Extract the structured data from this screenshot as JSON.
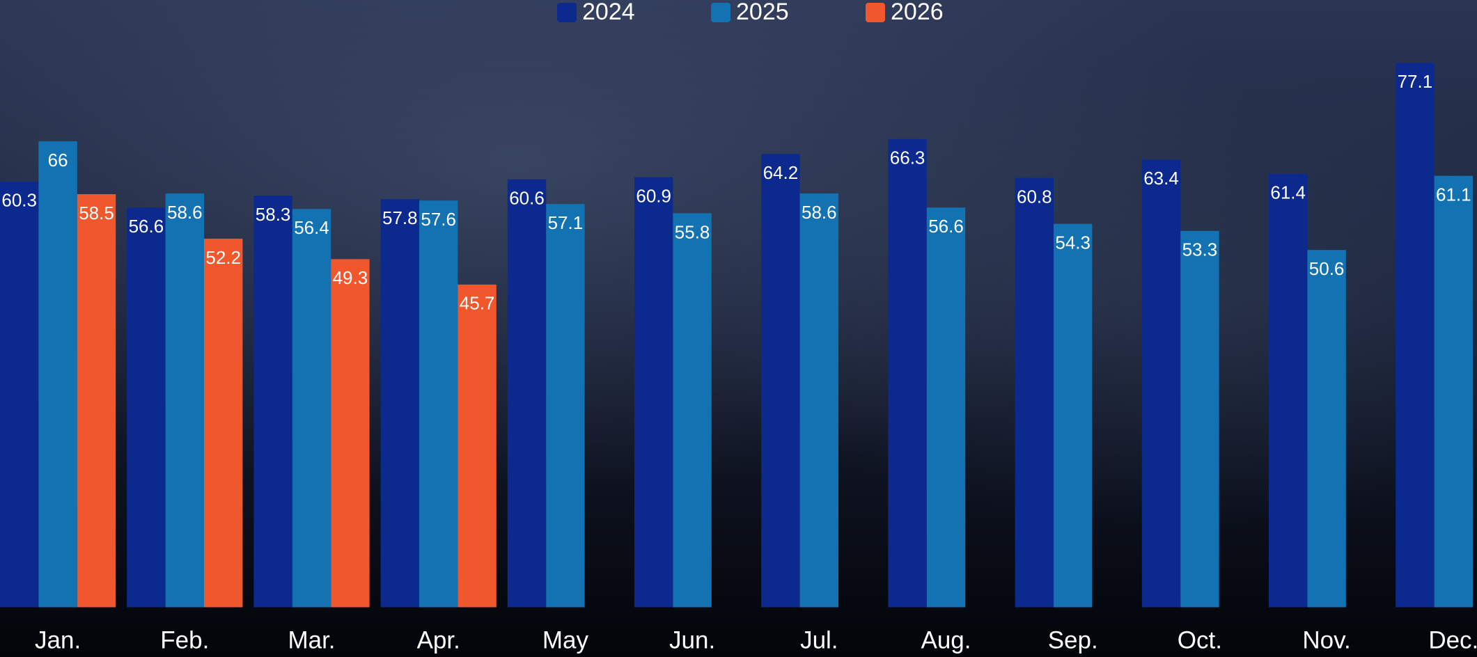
{
  "chart_data": {
    "type": "bar",
    "categories": [
      "Jan.",
      "Feb.",
      "Mar.",
      "Apr.",
      "May",
      "Jun.",
      "Jul.",
      "Aug.",
      "Sep.",
      "Oct.",
      "Nov.",
      "Dec."
    ],
    "series": [
      {
        "name": "2024",
        "color": "#0c2a8e",
        "values": [
          60.3,
          56.6,
          58.3,
          57.8,
          60.6,
          60.9,
          64.2,
          66.3,
          60.8,
          63.4,
          61.4,
          77.1
        ]
      },
      {
        "name": "2025",
        "color": "#1272b2",
        "values": [
          66.0,
          58.6,
          56.4,
          57.6,
          57.1,
          55.8,
          58.6,
          56.6,
          54.3,
          53.3,
          50.6,
          61.1
        ]
      },
      {
        "name": "2026",
        "color": "#f0572d",
        "values": [
          58.5,
          52.2,
          49.3,
          45.7,
          null,
          null,
          null,
          null,
          null,
          null,
          null,
          null
        ]
      }
    ],
    "ylim": [
      0,
      86
    ]
  }
}
